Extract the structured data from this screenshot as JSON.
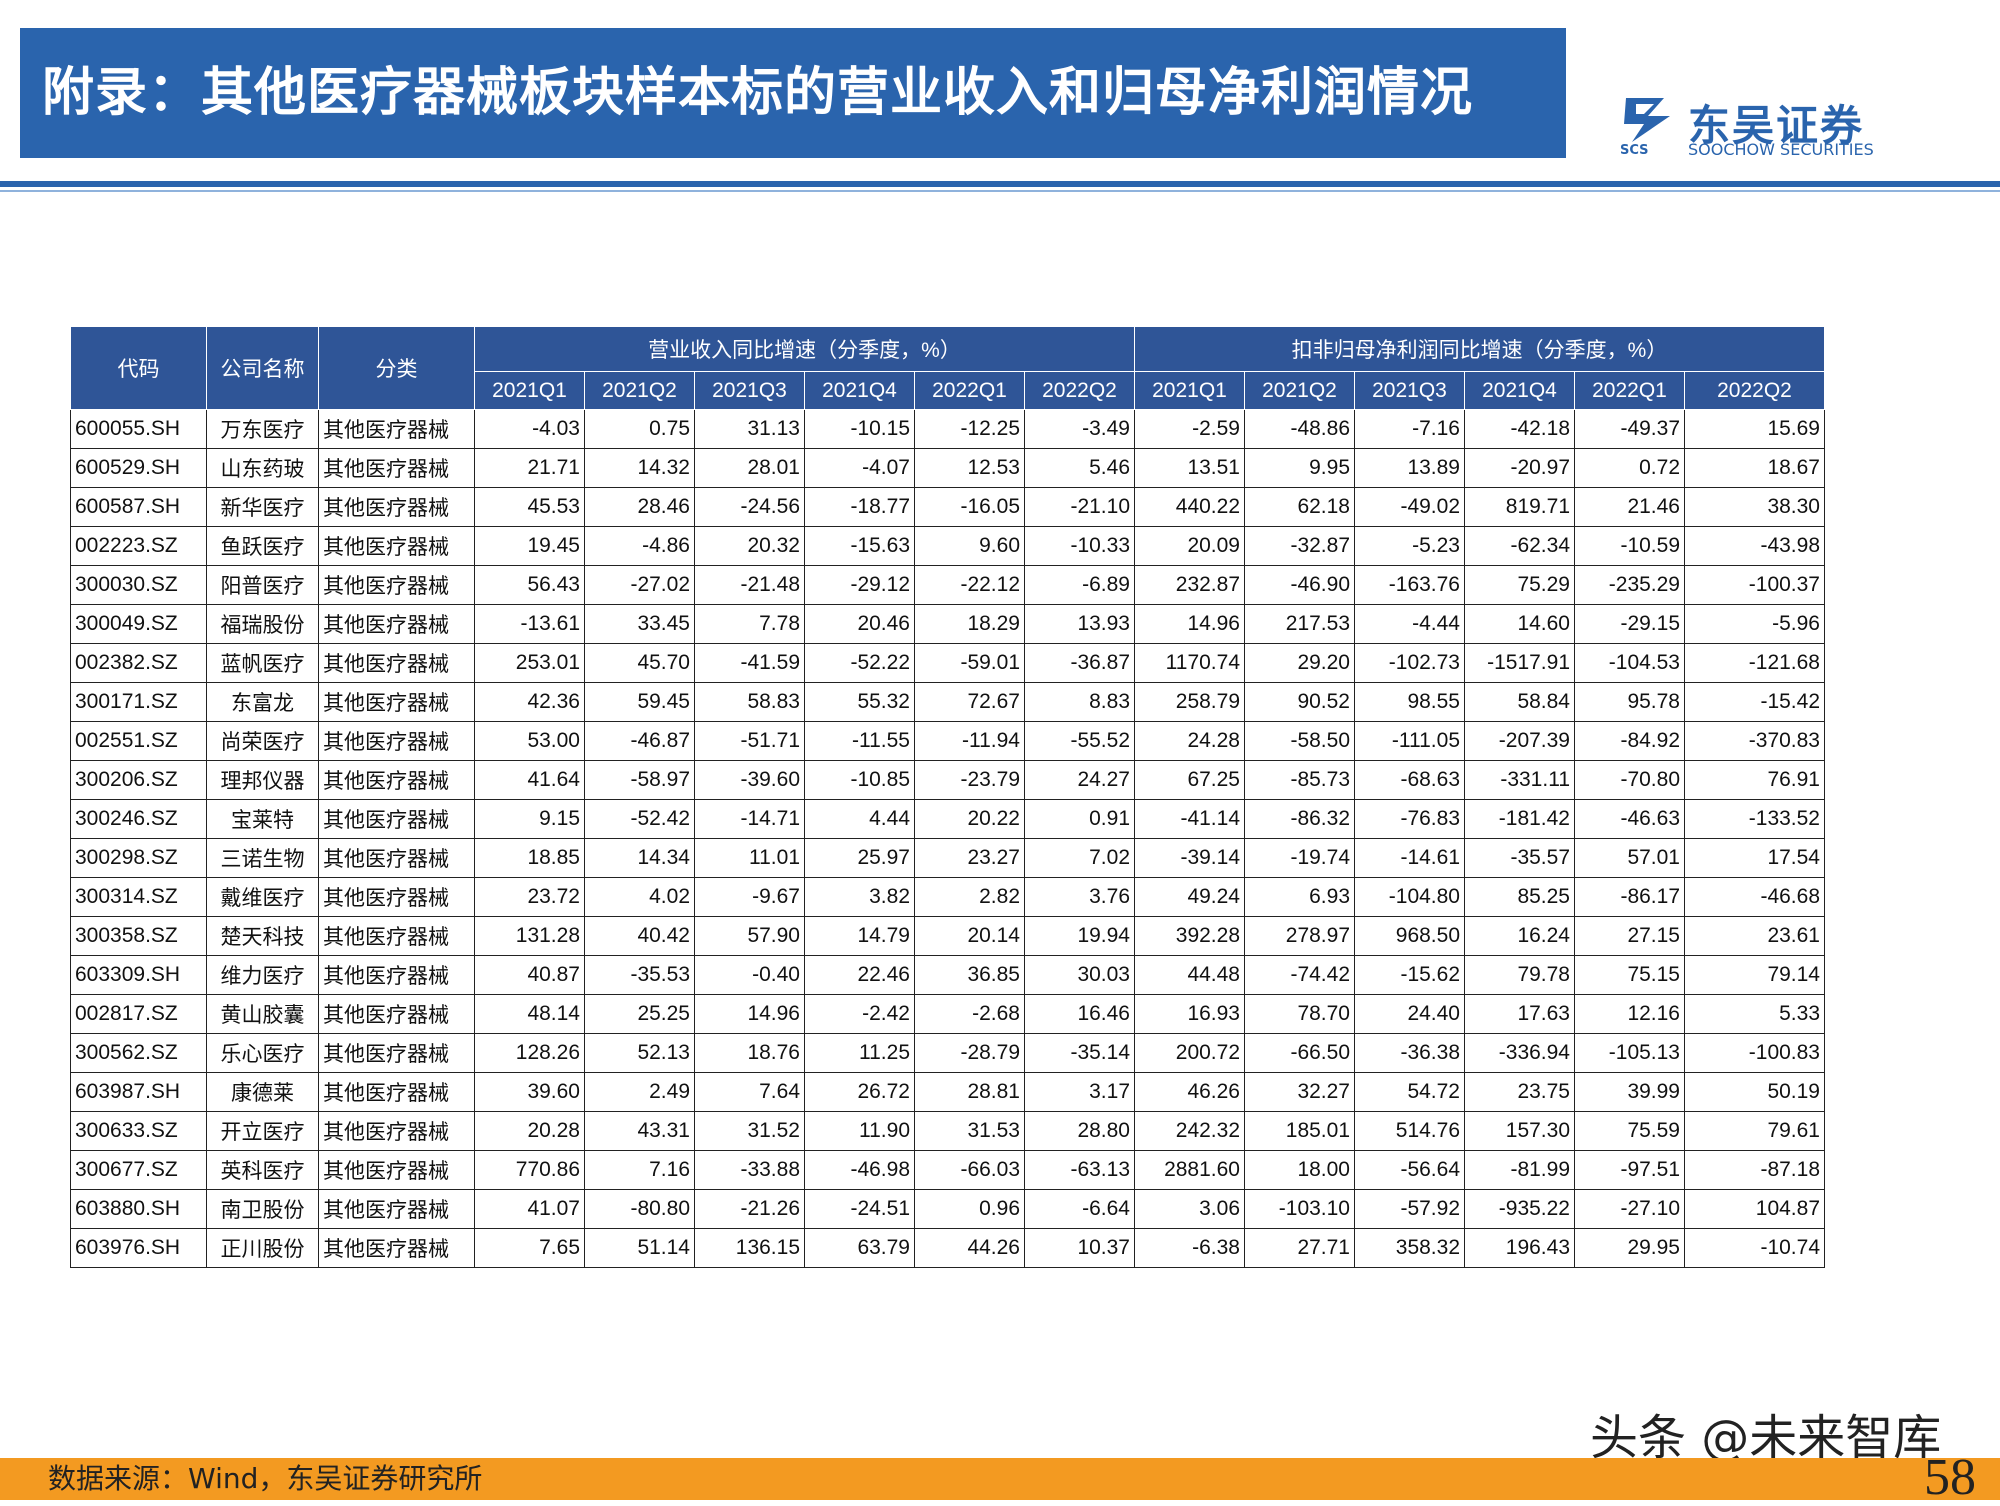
{
  "header": {
    "title": "附录：其他医疗器械板块样本标的营业收入和归母净利润情况",
    "logo_cn": "东吴证券",
    "logo_en": "SOOCHOW SECURITIES",
    "logo_mark": "SCS",
    "brand_color": "#2a64ad"
  },
  "table": {
    "columns": {
      "code": "代码",
      "name": "公司名称",
      "category": "分类"
    },
    "groups": [
      "营业收入同比增速（分季度，%）",
      "扣非归母净利润同比增速（分季度，%）"
    ],
    "quarters": [
      "2021Q1",
      "2021Q2",
      "2021Q3",
      "2021Q4",
      "2022Q1",
      "2022Q2"
    ],
    "rows": [
      {
        "code": "600055.SH",
        "name": "万东医疗",
        "category": "其他医疗器械",
        "values": [
          "-4.03",
          "0.75",
          "31.13",
          "-10.15",
          "-12.25",
          "-3.49",
          "-2.59",
          "-48.86",
          "-7.16",
          "-42.18",
          "-49.37",
          "15.69"
        ]
      },
      {
        "code": "600529.SH",
        "name": "山东药玻",
        "category": "其他医疗器械",
        "values": [
          "21.71",
          "14.32",
          "28.01",
          "-4.07",
          "12.53",
          "5.46",
          "13.51",
          "9.95",
          "13.89",
          "-20.97",
          "0.72",
          "18.67"
        ]
      },
      {
        "code": "600587.SH",
        "name": "新华医疗",
        "category": "其他医疗器械",
        "values": [
          "45.53",
          "28.46",
          "-24.56",
          "-18.77",
          "-16.05",
          "-21.10",
          "440.22",
          "62.18",
          "-49.02",
          "819.71",
          "21.46",
          "38.30"
        ]
      },
      {
        "code": "002223.SZ",
        "name": "鱼跃医疗",
        "category": "其他医疗器械",
        "values": [
          "19.45",
          "-4.86",
          "20.32",
          "-15.63",
          "9.60",
          "-10.33",
          "20.09",
          "-32.87",
          "-5.23",
          "-62.34",
          "-10.59",
          "-43.98"
        ]
      },
      {
        "code": "300030.SZ",
        "name": "阳普医疗",
        "category": "其他医疗器械",
        "values": [
          "56.43",
          "-27.02",
          "-21.48",
          "-29.12",
          "-22.12",
          "-6.89",
          "232.87",
          "-46.90",
          "-163.76",
          "75.29",
          "-235.29",
          "-100.37"
        ]
      },
      {
        "code": "300049.SZ",
        "name": "福瑞股份",
        "category": "其他医疗器械",
        "values": [
          "-13.61",
          "33.45",
          "7.78",
          "20.46",
          "18.29",
          "13.93",
          "14.96",
          "217.53",
          "-4.44",
          "14.60",
          "-29.15",
          "-5.96"
        ]
      },
      {
        "code": "002382.SZ",
        "name": "蓝帆医疗",
        "category": "其他医疗器械",
        "values": [
          "253.01",
          "45.70",
          "-41.59",
          "-52.22",
          "-59.01",
          "-36.87",
          "1170.74",
          "29.20",
          "-102.73",
          "-1517.91",
          "-104.53",
          "-121.68"
        ]
      },
      {
        "code": "300171.SZ",
        "name": "东富龙",
        "category": "其他医疗器械",
        "values": [
          "42.36",
          "59.45",
          "58.83",
          "55.32",
          "72.67",
          "8.83",
          "258.79",
          "90.52",
          "98.55",
          "58.84",
          "95.78",
          "-15.42"
        ]
      },
      {
        "code": "002551.SZ",
        "name": "尚荣医疗",
        "category": "其他医疗器械",
        "values": [
          "53.00",
          "-46.87",
          "-51.71",
          "-11.55",
          "-11.94",
          "-55.52",
          "24.28",
          "-58.50",
          "-111.05",
          "-207.39",
          "-84.92",
          "-370.83"
        ]
      },
      {
        "code": "300206.SZ",
        "name": "理邦仪器",
        "category": "其他医疗器械",
        "values": [
          "41.64",
          "-58.97",
          "-39.60",
          "-10.85",
          "-23.79",
          "24.27",
          "67.25",
          "-85.73",
          "-68.63",
          "-331.11",
          "-70.80",
          "76.91"
        ]
      },
      {
        "code": "300246.SZ",
        "name": "宝莱特",
        "category": "其他医疗器械",
        "values": [
          "9.15",
          "-52.42",
          "-14.71",
          "4.44",
          "20.22",
          "0.91",
          "-41.14",
          "-86.32",
          "-76.83",
          "-181.42",
          "-46.63",
          "-133.52"
        ]
      },
      {
        "code": "300298.SZ",
        "name": "三诺生物",
        "category": "其他医疗器械",
        "values": [
          "18.85",
          "14.34",
          "11.01",
          "25.97",
          "23.27",
          "7.02",
          "-39.14",
          "-19.74",
          "-14.61",
          "-35.57",
          "57.01",
          "17.54"
        ]
      },
      {
        "code": "300314.SZ",
        "name": "戴维医疗",
        "category": "其他医疗器械",
        "values": [
          "23.72",
          "4.02",
          "-9.67",
          "3.82",
          "2.82",
          "3.76",
          "49.24",
          "6.93",
          "-104.80",
          "85.25",
          "-86.17",
          "-46.68"
        ]
      },
      {
        "code": "300358.SZ",
        "name": "楚天科技",
        "category": "其他医疗器械",
        "values": [
          "131.28",
          "40.42",
          "57.90",
          "14.79",
          "20.14",
          "19.94",
          "392.28",
          "278.97",
          "968.50",
          "16.24",
          "27.15",
          "23.61"
        ]
      },
      {
        "code": "603309.SH",
        "name": "维力医疗",
        "category": "其他医疗器械",
        "values": [
          "40.87",
          "-35.53",
          "-0.40",
          "22.46",
          "36.85",
          "30.03",
          "44.48",
          "-74.42",
          "-15.62",
          "79.78",
          "75.15",
          "79.14"
        ]
      },
      {
        "code": "002817.SZ",
        "name": "黄山胶囊",
        "category": "其他医疗器械",
        "values": [
          "48.14",
          "25.25",
          "14.96",
          "-2.42",
          "-2.68",
          "16.46",
          "16.93",
          "78.70",
          "24.40",
          "17.63",
          "12.16",
          "5.33"
        ]
      },
      {
        "code": "300562.SZ",
        "name": "乐心医疗",
        "category": "其他医疗器械",
        "values": [
          "128.26",
          "52.13",
          "18.76",
          "11.25",
          "-28.79",
          "-35.14",
          "200.72",
          "-66.50",
          "-36.38",
          "-336.94",
          "-105.13",
          "-100.83"
        ]
      },
      {
        "code": "603987.SH",
        "name": "康德莱",
        "category": "其他医疗器械",
        "values": [
          "39.60",
          "2.49",
          "7.64",
          "26.72",
          "28.81",
          "3.17",
          "46.26",
          "32.27",
          "54.72",
          "23.75",
          "39.99",
          "50.19"
        ]
      },
      {
        "code": "300633.SZ",
        "name": "开立医疗",
        "category": "其他医疗器械",
        "values": [
          "20.28",
          "43.31",
          "31.52",
          "11.90",
          "31.53",
          "28.80",
          "242.32",
          "185.01",
          "514.76",
          "157.30",
          "75.59",
          "79.61"
        ]
      },
      {
        "code": "300677.SZ",
        "name": "英科医疗",
        "category": "其他医疗器械",
        "values": [
          "770.86",
          "7.16",
          "-33.88",
          "-46.98",
          "-66.03",
          "-63.13",
          "2881.60",
          "18.00",
          "-56.64",
          "-81.99",
          "-97.51",
          "-87.18"
        ]
      },
      {
        "code": "603880.SH",
        "name": "南卫股份",
        "category": "其他医疗器械",
        "values": [
          "41.07",
          "-80.80",
          "-21.26",
          "-24.51",
          "0.96",
          "-6.64",
          "3.06",
          "-103.10",
          "-57.92",
          "-935.22",
          "-27.10",
          "104.87"
        ]
      },
      {
        "code": "603976.SH",
        "name": "正川股份",
        "category": "其他医疗器械",
        "values": [
          "7.65",
          "51.14",
          "136.15",
          "63.79",
          "44.26",
          "10.37",
          "-6.38",
          "27.71",
          "358.32",
          "196.43",
          "29.95",
          "-10.74"
        ]
      }
    ]
  },
  "footer": {
    "source": "数据来源：Wind，东吴证券研究所",
    "page": "58",
    "watermark": "头条 @未来智库",
    "bar_color": "#f39a21"
  }
}
